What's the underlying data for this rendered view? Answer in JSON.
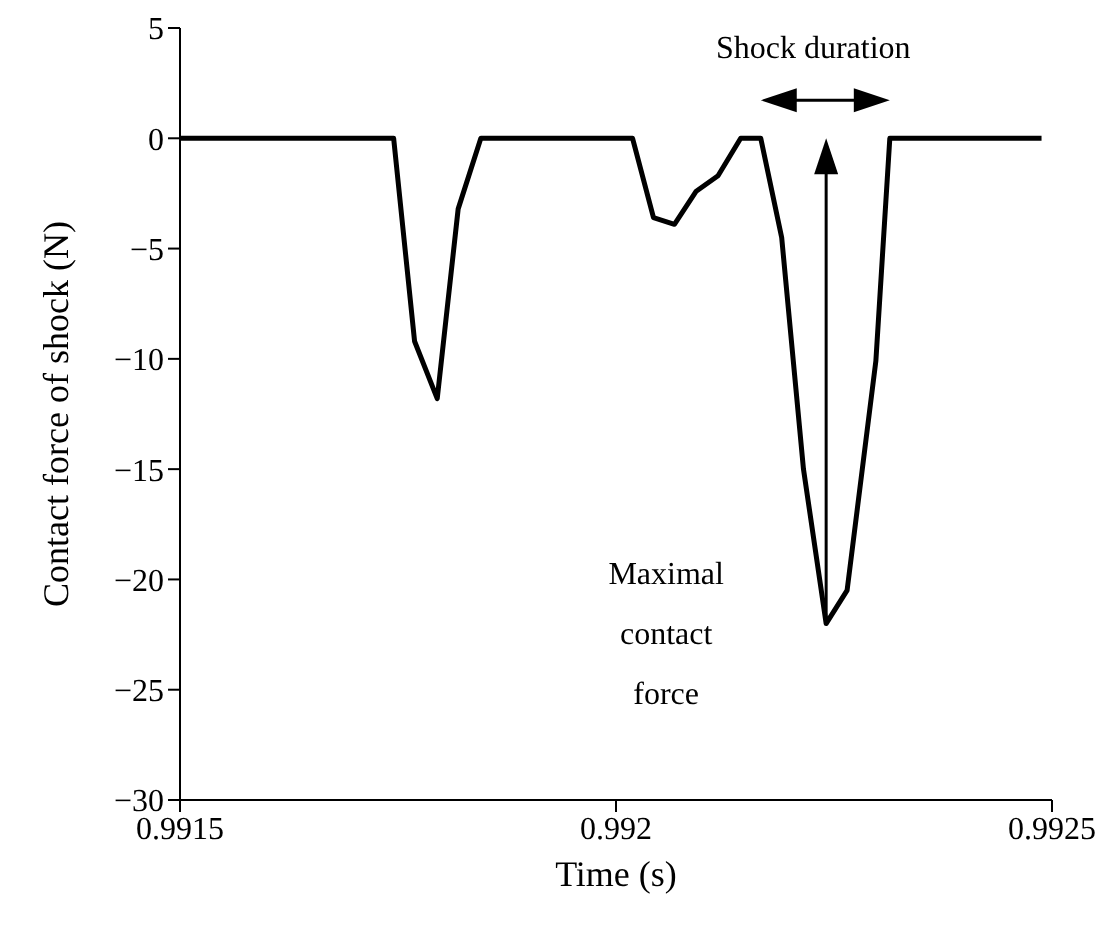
{
  "chart_data": {
    "type": "line",
    "xlabel": "Time (s)",
    "ylabel": "Contact force of shock (N)",
    "x": [
      0.9915,
      0.991745,
      0.991769,
      0.991795,
      0.991819,
      0.991845,
      0.992019,
      0.992043,
      0.992067,
      0.992092,
      0.992117,
      0.992143,
      0.992166,
      0.99219,
      0.992215,
      0.992241,
      0.992265,
      0.992298,
      0.992314,
      0.992488
    ],
    "series": [
      {
        "color": "#000000",
        "values": [
          0,
          0,
          -9.2,
          -11.8,
          -3.2,
          0,
          0,
          -3.6,
          -3.9,
          -2.4,
          -1.7,
          0,
          0,
          -4.5,
          -15,
          -22,
          -20.5,
          -10.1,
          0,
          0
        ]
      }
    ],
    "xlim": [
      0.9915,
      0.9925
    ],
    "xticks": [
      0.9915,
      0.992,
      0.9925
    ],
    "ylim": [
      -30,
      5
    ],
    "yticks": [
      -30,
      -25,
      -20,
      -15,
      -10,
      -5,
      0,
      5
    ],
    "annotations": [
      "Shock duration",
      "Maximal\ncontact\nforce"
    ],
    "grid": false,
    "legend": false,
    "marker": "none",
    "line_style": "solid"
  }
}
